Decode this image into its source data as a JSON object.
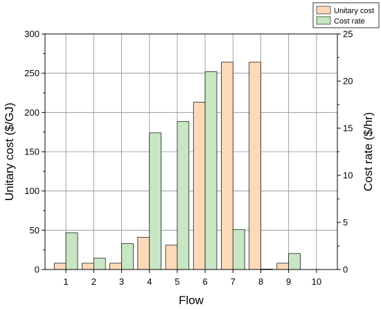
{
  "chart_data": {
    "type": "bar",
    "xlabel": "Flow",
    "ylabel_left": "Unitary cost ($/GJ)",
    "ylabel_right": "Cost rate ($/hr)",
    "categories": [
      "1",
      "2",
      "3",
      "4",
      "5",
      "6",
      "7",
      "8",
      "9",
      "10"
    ],
    "ylim_left": [
      0,
      300
    ],
    "ylim_right": [
      0,
      25
    ],
    "yticks_left": [
      "0",
      "50",
      "100",
      "150",
      "200",
      "250",
      "300"
    ],
    "yticks_right": [
      "0",
      "5",
      "10",
      "15",
      "20",
      "25"
    ],
    "grid": true,
    "legend_position": "top-right",
    "series": [
      {
        "name": "Unitary cost",
        "axis": "left",
        "color": "#fcd9b8",
        "values": [
          8,
          8,
          8,
          41,
          31,
          213,
          264,
          264,
          8,
          0
        ]
      },
      {
        "name": "Cost rate",
        "axis": "right",
        "color": "#c8e6c4",
        "values": [
          3.9,
          1.2,
          2.75,
          14.5,
          15.7,
          21.0,
          4.25,
          0.05,
          1.7,
          0
        ]
      }
    ]
  }
}
